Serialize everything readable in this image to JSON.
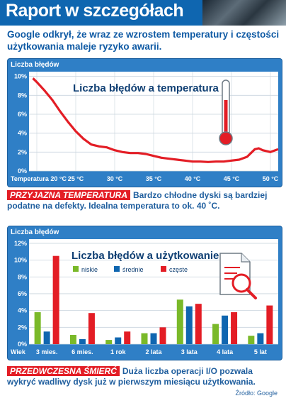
{
  "header": {
    "title": "Raport w szczegółach"
  },
  "subtitle": "Google odkrył, że wraz ze wzrostem temperatury i częstości użytkowania maleje ryzyko awarii.",
  "callout1": {
    "tag": "PRZYJAZNA TEMPERATURA",
    "text": "Bardzo chłodne dyski są bardziej podatne na defekty. Idealna temperatura to ok. 40 ˚C."
  },
  "callout2": {
    "tag": "PRZEDWCZESNA ŚMIERĆ",
    "text": "Duża liczba operacji I/O pozwala wykryć wadliwy dysk już w pierwszym miesiącu użytkowania."
  },
  "source": "Źródło: Google",
  "colors": {
    "panel": "#2f7fc6",
    "plot": "#ffffff",
    "line": "#e31d25",
    "low": "#7ab929",
    "mid": "#0f66b0",
    "high": "#e31d25"
  },
  "chart_data": [
    {
      "type": "line",
      "ylabel": "Liczba błędów",
      "title": "Liczba błędów a temperatura",
      "xlabel": "Temperatura",
      "x_ticks": [
        "20 °C",
        "25 °C",
        "30 °C",
        "35 °C",
        "40 °C",
        "45 °C",
        "50 °C"
      ],
      "y_ticks": [
        "0%",
        "2%",
        "4%",
        "6%",
        "8%",
        "10%"
      ],
      "ylim": [
        0,
        10.5
      ],
      "xlim": [
        19,
        51
      ],
      "icon": "thermometer-icon",
      "series": [
        {
          "x": [
            19.5,
            20,
            21,
            22,
            23,
            24,
            25,
            26,
            27,
            28,
            29,
            30,
            31,
            32,
            33,
            34,
            35,
            36,
            37,
            38,
            39,
            40,
            41,
            42,
            43,
            44,
            45,
            46,
            47,
            47.5,
            48,
            48.5,
            49,
            50,
            51
          ],
          "y": [
            9.8,
            9.4,
            8.5,
            7.5,
            6.3,
            5.2,
            4.2,
            3.4,
            2.8,
            2.6,
            2.5,
            2.2,
            2.0,
            1.9,
            1.9,
            1.8,
            1.6,
            1.4,
            1.3,
            1.2,
            1.1,
            1.0,
            1.0,
            0.95,
            1.0,
            1.0,
            1.1,
            1.2,
            1.5,
            1.9,
            2.3,
            2.4,
            2.2,
            2.0,
            2.3
          ]
        }
      ]
    },
    {
      "type": "bar",
      "ylabel": "Liczba błędów",
      "title": "Liczba błędów a użytkowanie",
      "xlabel": "Wiek",
      "categories": [
        "3 mies.",
        "6 mies.",
        "1 rok",
        "2 lata",
        "3 lata",
        "4 lata",
        "5 lat"
      ],
      "y_ticks": [
        "0%",
        "2%",
        "4%",
        "6%",
        "8%",
        "10%",
        "12%"
      ],
      "ylim": [
        0,
        12.5
      ],
      "legend_position": "top-center",
      "icon": "document-magnifier-icon",
      "series": [
        {
          "name": "niskie",
          "values": [
            3.8,
            1.1,
            0.5,
            1.3,
            5.3,
            2.4,
            1.0
          ]
        },
        {
          "name": "średnie",
          "values": [
            1.5,
            0.6,
            0.8,
            1.3,
            4.5,
            3.4,
            1.3
          ]
        },
        {
          "name": "częste",
          "values": [
            10.5,
            3.7,
            1.5,
            2.0,
            4.8,
            3.8,
            4.6
          ]
        }
      ]
    }
  ]
}
